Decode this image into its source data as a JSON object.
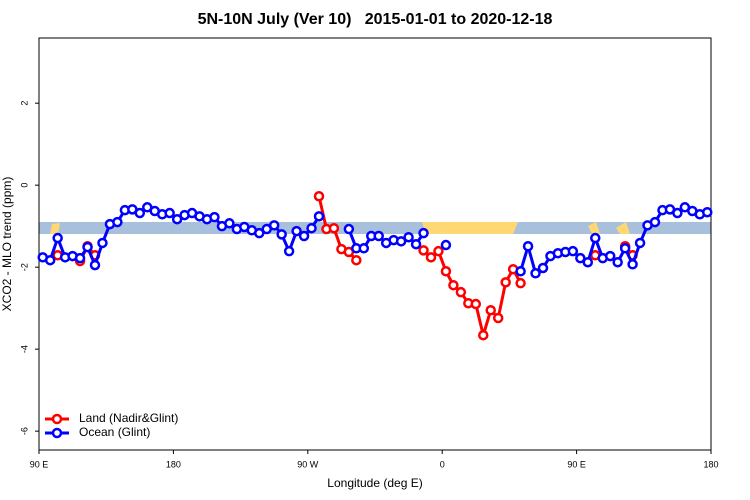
{
  "chart_data": {
    "type": "line",
    "title": "5N-10N July (Ver 10)   2015-01-01 to 2020-12-18",
    "x_label": "Longitude (deg E)",
    "y_label": "XCO2 - MLO trend (ppm)",
    "xlim": [
      90,
      540
    ],
    "ylim": [
      -6.46,
      3.59
    ],
    "xticks": [
      {
        "value": 90,
        "label": "90 E"
      },
      180,
      {
        "value": 270,
        "label": "90 W"
      },
      {
        "value": 360,
        "label": "0"
      },
      {
        "value": 450,
        "label": "90 E"
      },
      {
        "value": 540,
        "label": "180"
      }
    ],
    "yticks": [
      -6,
      -4,
      -2,
      0,
      2
    ],
    "legend": "bottom-left",
    "x": [
      92.5,
      97.5,
      102.5,
      107.5,
      112.5,
      117.5,
      122.5,
      127.5,
      132.5,
      137.5,
      142.5,
      147.5,
      152.5,
      157.5,
      162.5,
      167.5,
      172.5,
      177.5,
      182.5,
      187.5,
      192.5,
      197.5,
      202.5,
      207.5,
      212.5,
      217.5,
      222.5,
      227.5,
      232.5,
      237.5,
      242.5,
      247.5,
      252.5,
      257.5,
      262.5,
      267.5,
      272.5,
      277.5,
      282.5,
      287.5,
      292.5,
      297.5,
      302.5,
      307.5,
      312.5,
      317.5,
      322.5,
      327.5,
      332.5,
      337.5,
      342.5,
      347.5,
      352.5,
      357.5,
      362.5,
      367.5,
      372.5,
      377.5,
      382.5,
      387.5,
      392.5,
      397.5,
      402.5,
      407.5,
      412.5,
      417.5,
      422.5,
      427.5,
      432.5,
      437.5,
      442.5,
      447.5,
      452.5,
      457.5,
      462.5,
      467.5,
      472.5,
      477.5,
      482.5,
      487.5,
      492.5,
      497.5,
      502.5,
      507.5,
      512.5,
      517.5,
      522.5,
      527.5,
      532.5,
      537.5
    ],
    "series": [
      {
        "name": "Land (Nadir&Glint)",
        "color": "#ff0000",
        "values": [
          null,
          null,
          -1.71,
          null,
          null,
          -1.85,
          -1.49,
          -1.71,
          null,
          null,
          null,
          null,
          null,
          null,
          null,
          null,
          null,
          null,
          null,
          null,
          null,
          null,
          null,
          null,
          null,
          null,
          null,
          null,
          null,
          null,
          null,
          null,
          null,
          null,
          null,
          null,
          null,
          -0.27,
          -1.07,
          -1.05,
          -1.56,
          -1.63,
          -1.83,
          null,
          null,
          null,
          null,
          null,
          null,
          null,
          null,
          -1.59,
          -1.76,
          -1.61,
          -2.1,
          -2.44,
          -2.61,
          -2.88,
          -2.9,
          -3.66,
          -3.05,
          -3.24,
          -2.37,
          -2.05,
          -2.39,
          null,
          null,
          null,
          null,
          null,
          null,
          null,
          null,
          null,
          -1.71,
          null,
          null,
          null,
          -1.49,
          -1.71,
          null,
          null,
          null,
          null,
          null,
          null,
          null,
          null,
          null,
          null
        ]
      },
      {
        "name": "Ocean (Glint)",
        "color": "#0000ff",
        "values": [
          -1.76,
          -1.83,
          -1.29,
          -1.76,
          -1.73,
          -1.78,
          -1.51,
          -1.95,
          -1.41,
          -0.95,
          -0.9,
          -0.61,
          -0.59,
          -0.68,
          -0.54,
          -0.63,
          -0.71,
          -0.68,
          -0.83,
          -0.73,
          -0.68,
          -0.76,
          -0.83,
          -0.78,
          -1.0,
          -0.93,
          -1.07,
          -1.02,
          -1.1,
          -1.17,
          -1.07,
          -0.98,
          -1.2,
          -1.61,
          -1.12,
          -1.24,
          -1.05,
          -0.76,
          null,
          null,
          null,
          -1.07,
          -1.54,
          -1.54,
          -1.24,
          -1.24,
          -1.41,
          -1.34,
          -1.37,
          -1.27,
          -1.44,
          -1.17,
          null,
          null,
          -1.46,
          null,
          null,
          null,
          null,
          null,
          null,
          null,
          null,
          null,
          -2.1,
          -1.49,
          -2.15,
          -2.02,
          -1.73,
          -1.66,
          -1.63,
          -1.61,
          -1.78,
          -1.88,
          -1.29,
          -1.78,
          -1.73,
          -1.88,
          -1.54,
          -1.93,
          -1.41,
          -0.98,
          -0.9,
          -0.61,
          -0.59,
          -0.68,
          -0.54,
          -0.63,
          -0.71,
          -0.66
        ]
      }
    ]
  }
}
